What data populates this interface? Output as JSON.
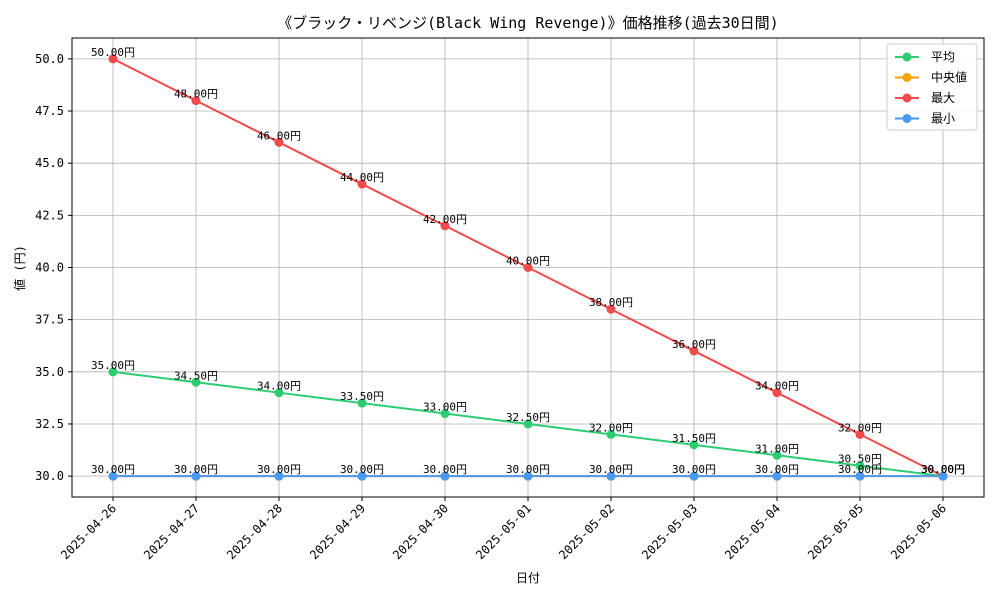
{
  "chart_data": {
    "type": "line",
    "title": "《ブラック・リベンジ(Black Wing Revenge)》価格推移(過去30日間)",
    "xlabel": "日付",
    "ylabel": "値 (円)",
    "x": [
      "2025-04-26",
      "2025-04-27",
      "2025-04-28",
      "2025-04-29",
      "2025-04-30",
      "2025-05-01",
      "2025-05-02",
      "2025-05-03",
      "2025-05-04",
      "2025-05-05",
      "2025-05-06"
    ],
    "ylim": [
      29.0,
      51.0
    ],
    "yticks": [
      "30.0",
      "32.5",
      "35.0",
      "37.5",
      "40.0",
      "42.5",
      "45.0",
      "47.5",
      "50.0"
    ],
    "grid": true,
    "legend_position": "top-right",
    "label_suffix": "円",
    "series": [
      {
        "name": "平均",
        "color": "#2ecc71",
        "values": [
          35.0,
          34.5,
          34.0,
          33.5,
          33.0,
          32.5,
          32.0,
          31.5,
          31.0,
          30.5,
          30.0
        ]
      },
      {
        "name": "中央値",
        "color": "#f5a200",
        "values": [
          30.0,
          30.0,
          30.0,
          30.0,
          30.0,
          30.0,
          30.0,
          30.0,
          30.0,
          30.0,
          30.0
        ]
      },
      {
        "name": "最大",
        "color": "#f04a4a",
        "values": [
          50.0,
          48.0,
          46.0,
          44.0,
          42.0,
          40.0,
          38.0,
          36.0,
          34.0,
          32.0,
          30.0
        ]
      },
      {
        "name": "最小",
        "color": "#4a98ef",
        "values": [
          30.0,
          30.0,
          30.0,
          30.0,
          30.0,
          30.0,
          30.0,
          30.0,
          30.0,
          30.0,
          30.0
        ]
      }
    ]
  }
}
